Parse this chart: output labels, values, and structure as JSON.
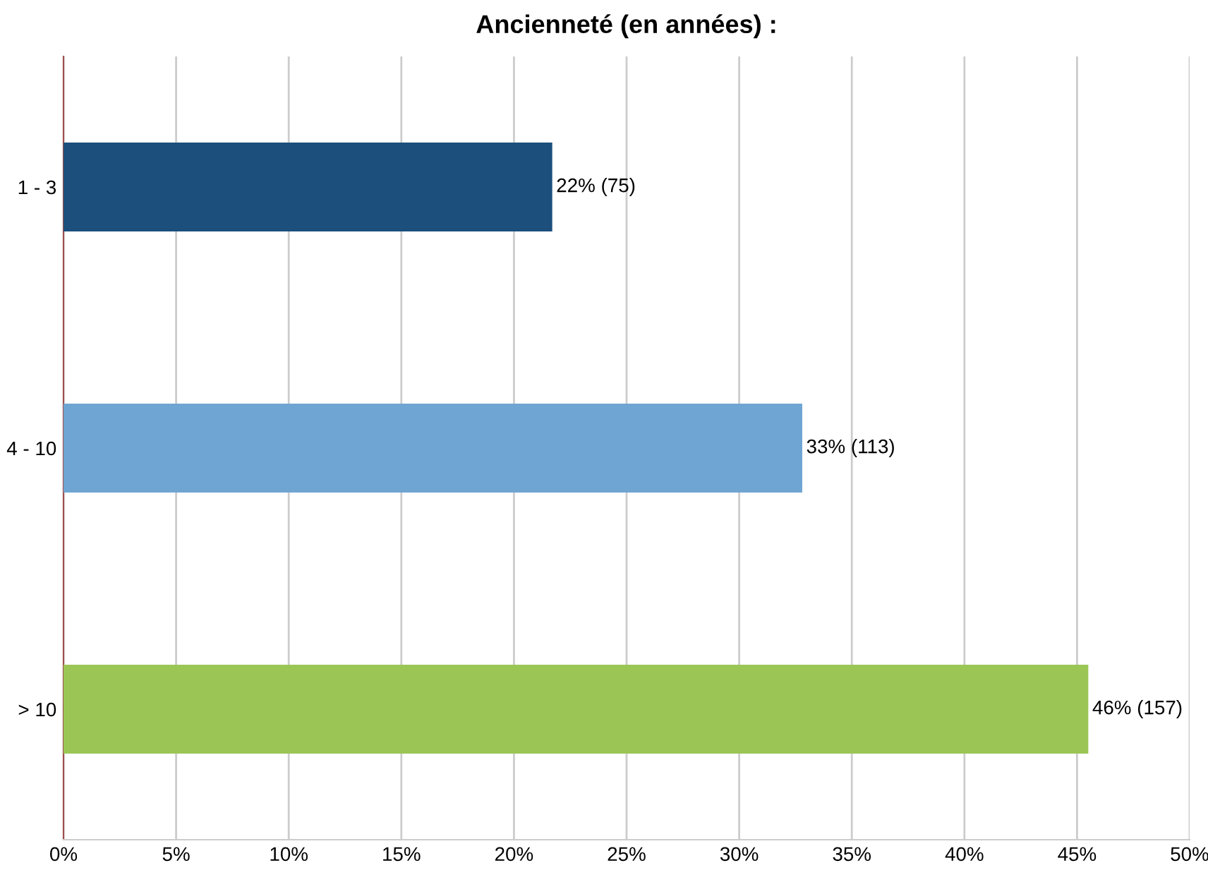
{
  "chart_data": {
    "type": "bar",
    "orientation": "horizontal",
    "title": "Ancienneté (en années) :",
    "categories": [
      "1 - 3",
      "4 - 10",
      "> 10"
    ],
    "values": [
      21.7,
      32.8,
      45.5
    ],
    "colors": [
      "#1c4f7c",
      "#6fa5d2",
      "#9bc656"
    ],
    "value_labels": [
      "22% (75)",
      "33% (113)",
      "46% (157)"
    ],
    "xlim": [
      0,
      50
    ],
    "xticks": [
      {
        "value": 0,
        "label": "0%"
      },
      {
        "value": 5,
        "label": "5%"
      },
      {
        "value": 10,
        "label": "10%"
      },
      {
        "value": 15,
        "label": "15%"
      },
      {
        "value": 20,
        "label": "20%"
      },
      {
        "value": 25,
        "label": "25%"
      },
      {
        "value": 30,
        "label": "30%"
      },
      {
        "value": 35,
        "label": "35%"
      },
      {
        "value": 40,
        "label": "40%"
      },
      {
        "value": 45,
        "label": "45%"
      },
      {
        "value": 50,
        "label": "50%"
      }
    ],
    "grid": "x",
    "legend": false
  }
}
